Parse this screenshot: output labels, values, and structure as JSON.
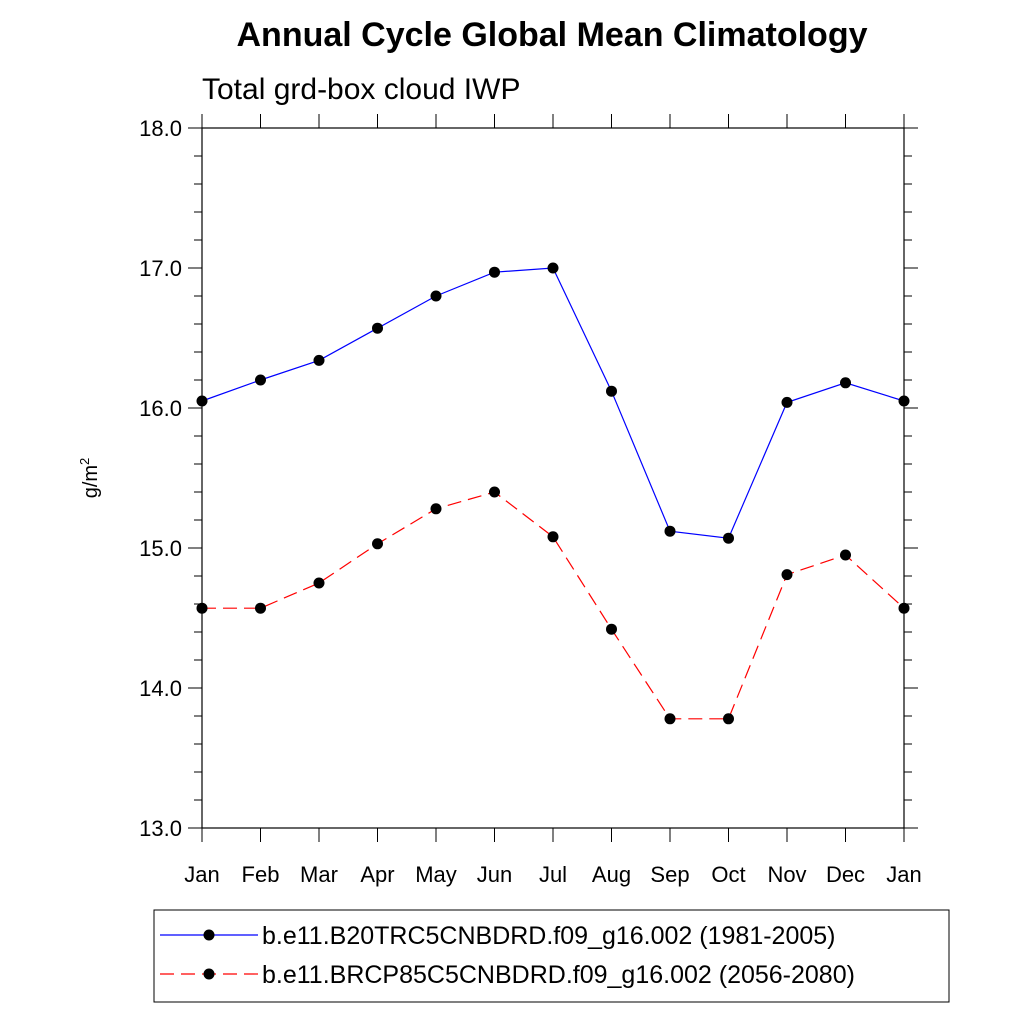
{
  "chart_data": {
    "type": "line",
    "title": "Annual Cycle Global Mean Climatology",
    "subtitle": "Total grd-box cloud IWP",
    "xlabel": "",
    "ylabel": "g/m",
    "ylabel_superscript": "2",
    "categories": [
      "Jan",
      "Feb",
      "Mar",
      "Apr",
      "May",
      "Jun",
      "Jul",
      "Aug",
      "Sep",
      "Oct",
      "Nov",
      "Dec",
      "Jan"
    ],
    "ylim": [
      13.0,
      18.0
    ],
    "yticks": [
      13.0,
      14.0,
      15.0,
      16.0,
      17.0,
      18.0
    ],
    "ytick_labels": [
      "13.0",
      "14.0",
      "15.0",
      "16.0",
      "17.0",
      "18.0"
    ],
    "y_minor_step": 0.2,
    "grid": false,
    "legend_position": "bottom",
    "series": [
      {
        "name": "b.e11.B20TRC5CNBDRD.f09_g16.002 (1981-2005)",
        "color": "#0000ff",
        "dash": "solid",
        "marker": "circle",
        "values": [
          16.05,
          16.2,
          16.34,
          16.57,
          16.8,
          16.97,
          17.0,
          16.12,
          15.12,
          15.07,
          16.04,
          16.18,
          16.05
        ]
      },
      {
        "name": "b.e11.BRCP85C5CNBDRD.f09_g16.002 (2056-2080)",
        "color": "#ff0000",
        "dash": "dashed",
        "marker": "circle",
        "values": [
          14.57,
          14.57,
          14.75,
          15.03,
          15.28,
          15.4,
          15.08,
          14.42,
          13.78,
          13.78,
          14.81,
          14.95,
          14.57
        ]
      }
    ]
  }
}
